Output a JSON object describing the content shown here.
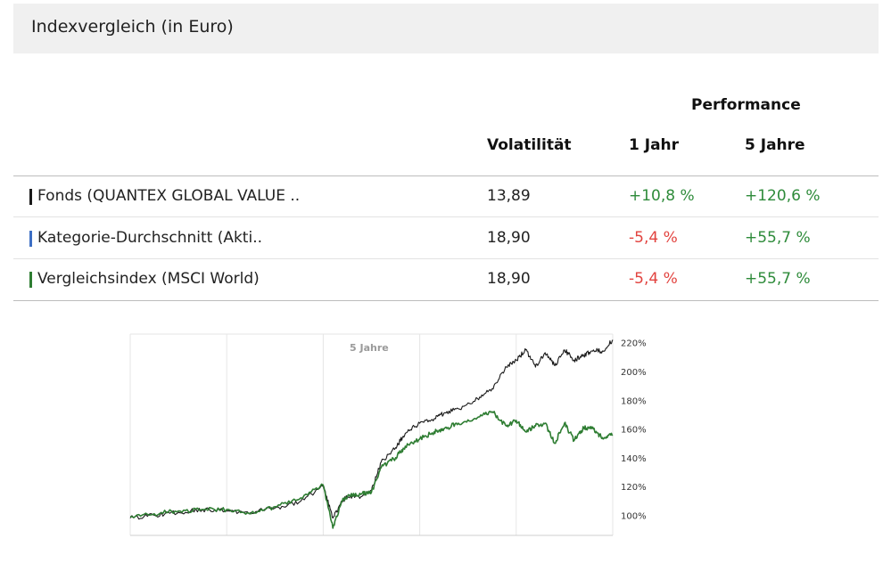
{
  "header": {
    "title": "Indexvergleich (in Euro)"
  },
  "table": {
    "group_header": "Performance",
    "columns": {
      "volatility": "Volatilität",
      "one_year": "1 Jahr",
      "five_years": "5 Jahre"
    },
    "rows": [
      {
        "name": "Fonds (QUANTEX GLOBAL VALUE ..",
        "volatility": "13,89",
        "one_year": "+10,8 %",
        "five_years": "+120,6 %",
        "marker_color": "#1a1a1a"
      },
      {
        "name": "Kategorie-Durchschnitt (Akti..",
        "volatility": "18,90",
        "one_year": "-5,4 %",
        "five_years": "+55,7 %",
        "marker_color": "#3d6fc4"
      },
      {
        "name": "Vergleichsindex (MSCI World)",
        "volatility": "18,90",
        "one_year": "-5,4 %",
        "five_years": "+55,7 %",
        "marker_color": "#2e7d32"
      }
    ]
  },
  "chart_data": {
    "type": "line",
    "period_label": "5 Jahre",
    "y_ticks": [
      "100%",
      "120%",
      "140%",
      "160%",
      "180%",
      "200%",
      "220%"
    ],
    "ylim": [
      86,
      226
    ],
    "x": [
      0,
      0.05,
      0.1,
      0.15,
      0.2,
      0.25,
      0.3,
      0.35,
      0.4,
      0.42,
      0.44,
      0.45,
      0.48,
      0.5,
      0.52,
      0.55,
      0.57,
      0.6,
      0.63,
      0.65,
      0.68,
      0.72,
      0.75,
      0.78,
      0.8,
      0.82,
      0.84,
      0.86,
      0.88,
      0.9,
      0.92,
      0.94,
      0.96,
      0.98,
      1.0
    ],
    "series": [
      {
        "color": "#1a1a1a",
        "values": [
          98,
          100,
          102,
          104,
          103,
          102,
          105,
          109,
          120,
          98,
          110,
          113,
          113,
          117,
          137,
          147,
          157,
          164,
          167,
          171,
          174,
          181,
          188,
          203,
          208,
          215,
          203,
          213,
          204,
          215,
          208,
          211,
          215,
          214,
          222
        ]
      },
      {
        "color": "#2e7d32",
        "values": [
          99,
          101,
          103,
          104,
          104,
          101,
          106,
          111,
          121,
          91,
          110,
          113,
          115,
          116,
          133,
          140,
          148,
          153,
          158,
          160,
          164,
          168,
          172,
          162,
          166,
          158,
          162,
          164,
          150,
          164,
          152,
          161,
          160,
          153,
          156
        ]
      }
    ]
  }
}
